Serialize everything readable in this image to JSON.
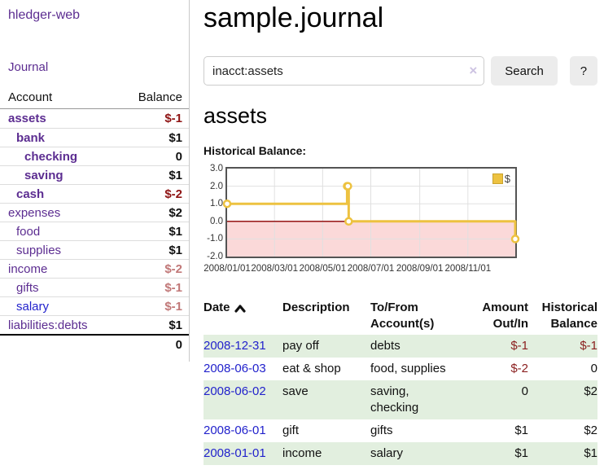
{
  "app": {
    "brand": "hledger-web"
  },
  "sidebar": {
    "journal_link": "Journal",
    "accounts": {
      "col_account": "Account",
      "col_balance": "Balance",
      "rows": [
        {
          "name": "assets",
          "depth": 0,
          "matched": true,
          "balance": "$-1",
          "balance_class": "neg-strong"
        },
        {
          "name": "bank",
          "depth": 1,
          "matched": true,
          "balance": "$1",
          "balance_class": ""
        },
        {
          "name": "checking",
          "depth": 2,
          "matched": true,
          "balance": "0",
          "balance_class": ""
        },
        {
          "name": "saving",
          "depth": 2,
          "matched": true,
          "balance": "$1",
          "balance_class": ""
        },
        {
          "name": "cash",
          "depth": 1,
          "matched": true,
          "balance": "$-2",
          "balance_class": "neg-strong"
        },
        {
          "name": "expenses",
          "depth": 0,
          "matched": false,
          "balance": "$2",
          "balance_class": ""
        },
        {
          "name": "food",
          "depth": 1,
          "matched": false,
          "balance": "$1",
          "balance_class": ""
        },
        {
          "name": "supplies",
          "depth": 1,
          "matched": false,
          "balance": "$1",
          "balance_class": ""
        },
        {
          "name": "income",
          "depth": 0,
          "matched": false,
          "balance": "$-2",
          "balance_class": "neg-soft"
        },
        {
          "name": "gifts",
          "depth": 1,
          "matched": false,
          "balance": "$-1",
          "balance_class": "neg-soft"
        },
        {
          "name": "salary",
          "depth": 1,
          "matched": false,
          "link_blue": true,
          "balance": "$-1",
          "balance_class": "neg-soft"
        },
        {
          "name": "liabilities:debts",
          "depth": 0,
          "matched": false,
          "balance": "$1",
          "balance_class": ""
        }
      ],
      "total": "0"
    }
  },
  "header": {
    "title": "sample.journal"
  },
  "search": {
    "value": "inacct:assets",
    "clear_icon": "×",
    "button_label": "Search",
    "help_label": "?"
  },
  "account_page": {
    "title": "assets",
    "section_heading": "Historical Balance:"
  },
  "chart_data": {
    "type": "line",
    "step": true,
    "title": "Historical Balance",
    "series": [
      {
        "name": "$",
        "color": "#edc240",
        "points": [
          [
            "2008-01-01",
            1
          ],
          [
            "2008-06-01",
            2
          ],
          [
            "2008-06-02",
            2
          ],
          [
            "2008-06-03",
            0
          ],
          [
            "2008-12-31",
            -1
          ]
        ]
      }
    ],
    "xlim": [
      "2008-01-01",
      "2008-12-31"
    ],
    "ylim": [
      -2,
      3
    ],
    "yticks": [
      "3.0",
      "2.0",
      "1.0",
      "0.0",
      "-1.0",
      "-2.0"
    ],
    "xticks": [
      "2008/01/01",
      "2008/03/01",
      "2008/05/01",
      "2008/07/01",
      "2008/09/01",
      "2008/11/01"
    ],
    "legend": "$",
    "legend_position": "top-right",
    "grid": true,
    "grid_color": "#e0e0e0",
    "negative_region_fill": "#fbd9d9",
    "zero_line_color": "#8b0000",
    "marker": "circle-open"
  },
  "register": {
    "columns": [
      {
        "line1": "Date",
        "line2": "",
        "align": "left",
        "sortable": true
      },
      {
        "line1": "Description",
        "line2": "",
        "align": "left"
      },
      {
        "line1": "To/From",
        "line2": "Account(s)",
        "align": "left"
      },
      {
        "line1": "Amount",
        "line2": "Out/In",
        "align": "right"
      },
      {
        "line1": "Historical",
        "line2": "Balance",
        "align": "right"
      }
    ],
    "rows": [
      {
        "date": "2008-12-31",
        "description": "pay off",
        "accounts": "debts",
        "amount": "$-1",
        "amount_class": "neg",
        "balance": "$-1",
        "balance_class": "neg",
        "shaded": true
      },
      {
        "date": "2008-06-03",
        "description": "eat & shop",
        "accounts": "food, supplies",
        "amount": "$-2",
        "amount_class": "neg",
        "balance": "0",
        "balance_class": "",
        "shaded": false
      },
      {
        "date": "2008-06-02",
        "description": "save",
        "accounts": "saving, checking",
        "amount": "0",
        "amount_class": "",
        "balance": "$2",
        "balance_class": "",
        "shaded": true
      },
      {
        "date": "2008-06-01",
        "description": "gift",
        "accounts": "gifts",
        "amount": "$1",
        "amount_class": "",
        "balance": "$2",
        "balance_class": "",
        "shaded": false
      },
      {
        "date": "2008-01-01",
        "description": "income",
        "accounts": "salary",
        "amount": "$1",
        "amount_class": "",
        "balance": "$1",
        "balance_class": "",
        "shaded": true
      }
    ]
  },
  "colors": {
    "accent_purple": "#5c2d91",
    "link_blue": "#2222cc",
    "negative_strong": "#8f1414",
    "negative_soft": "#c17878",
    "table_negative": "#8b2020",
    "row_stripe_green": "#e2efdf",
    "series_yellow": "#edc240",
    "negative_region_pink": "#fbd9d9",
    "zero_line_red": "#8b0000"
  }
}
